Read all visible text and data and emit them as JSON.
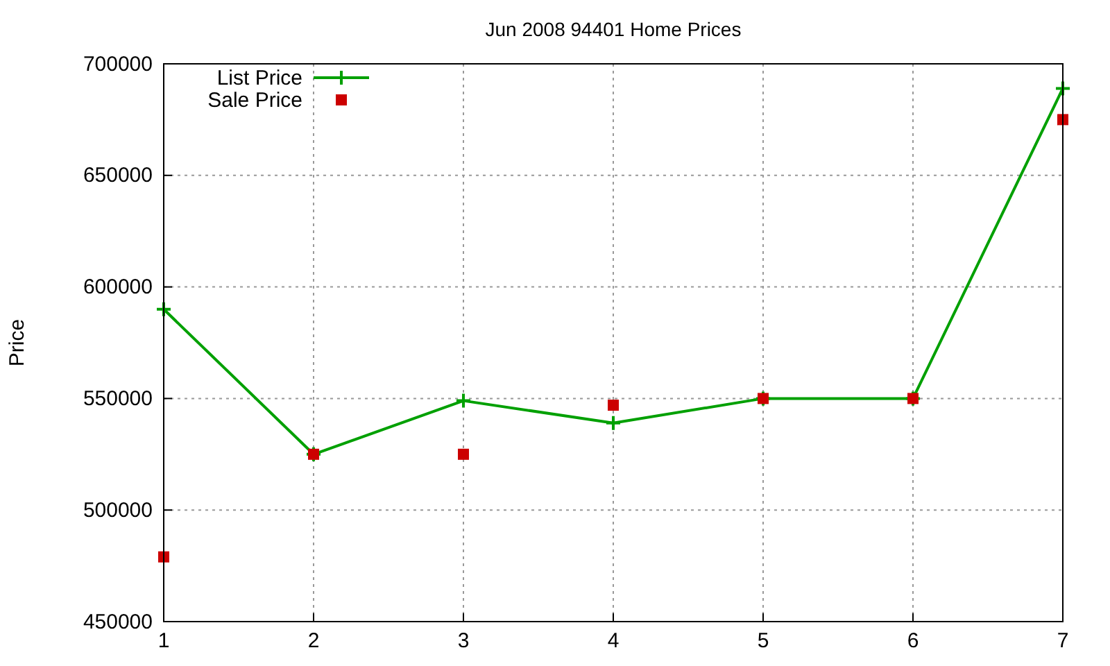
{
  "chart_data": {
    "type": "line",
    "title": "Jun 2008 94401 Home Prices",
    "ylabel": "Price",
    "x": [
      1,
      2,
      3,
      4,
      5,
      6,
      7
    ],
    "series": [
      {
        "name": "List Price",
        "color": "#00a000",
        "marker": "cross",
        "values": [
          590000,
          525000,
          549000,
          539000,
          550000,
          550000,
          689000
        ]
      },
      {
        "name": "Sale Price",
        "type": "scatter",
        "color": "#cc0000",
        "marker": "square",
        "values": [
          479000,
          525000,
          525000,
          547000,
          550000,
          550000,
          675000
        ]
      }
    ],
    "xlim": [
      1,
      7
    ],
    "xticks": [
      1,
      2,
      3,
      4,
      5,
      6,
      7
    ],
    "ylim": [
      450000,
      700000
    ],
    "yticks": [
      450000,
      500000,
      550000,
      600000,
      650000,
      700000
    ],
    "grid": true,
    "legend": "top left"
  }
}
